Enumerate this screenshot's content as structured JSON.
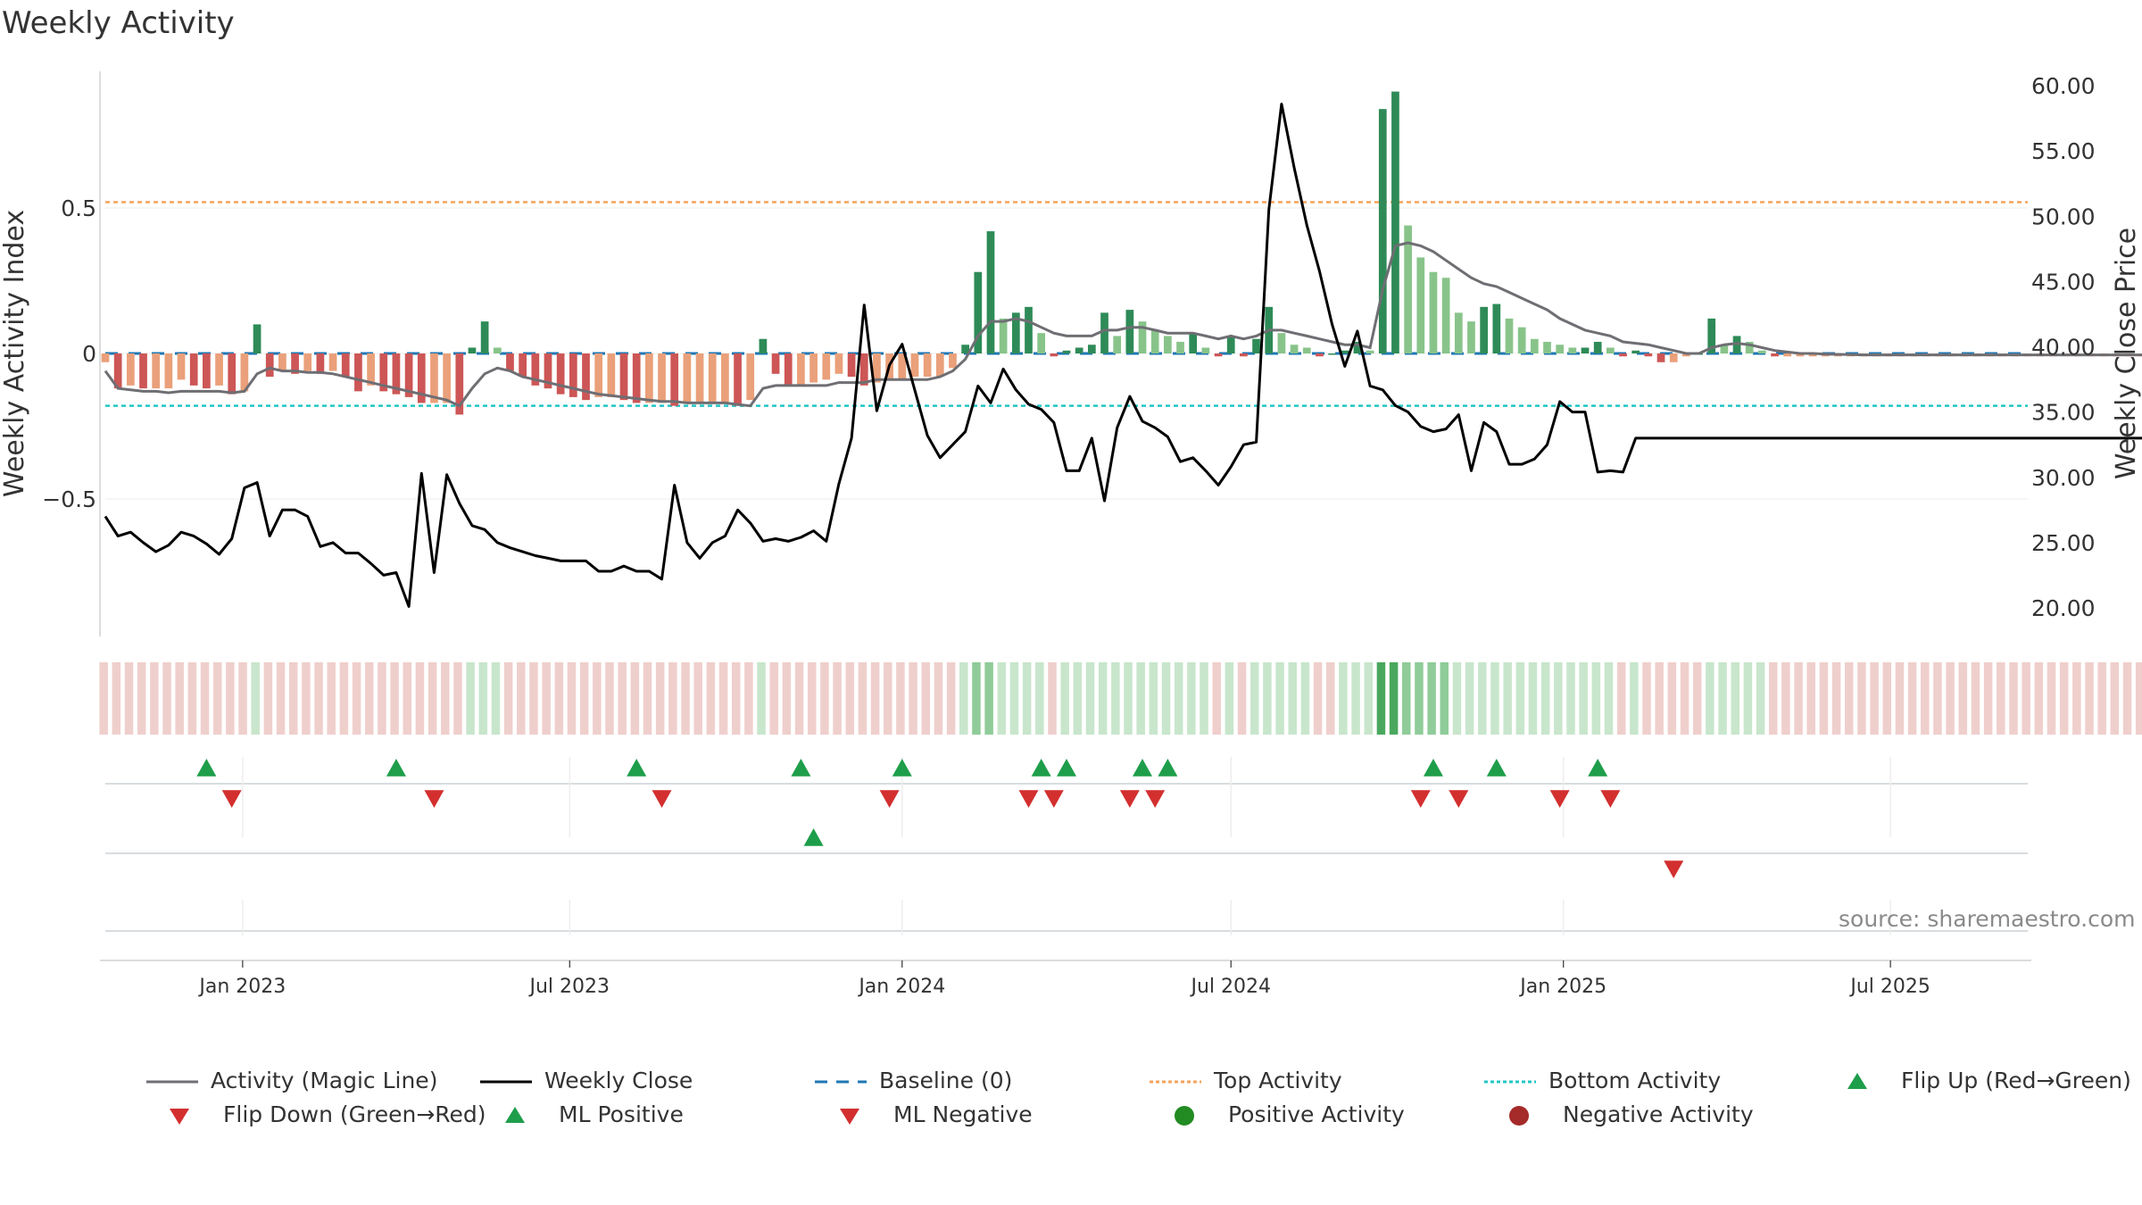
{
  "title": "Weekly Activity",
  "source": "source: sharemaestro.com",
  "colors": {
    "magic_line": "#6e6e73",
    "close": "#000000",
    "baseline": "#1f77b4",
    "top": "#f5a35a",
    "bottom": "#22c5c5",
    "up": "#1e9e4a",
    "down": "#d32f2f",
    "pos_dark": "#2e8b57",
    "pos_light": "#88c48a",
    "neg_dark": "#cd5656",
    "neg_light": "#eaa07a",
    "band_pos": "#c8e6cc",
    "band_neg": "#efcfcc",
    "band_pos_strong": "#4aa85e"
  },
  "legend": [
    {
      "key": "magic",
      "label": "Activity (Magic Line)",
      "symbol": "line-solid-gray"
    },
    {
      "key": "close",
      "label": "Weekly Close",
      "symbol": "line-solid-black"
    },
    {
      "key": "baseline",
      "label": "Baseline (0)",
      "symbol": "line-dashed-blue"
    },
    {
      "key": "top",
      "label": "Top Activity",
      "symbol": "line-dotted-orange"
    },
    {
      "key": "bottom",
      "label": "Bottom Activity",
      "symbol": "line-dotted-cyan"
    },
    {
      "key": "flipup",
      "label": "Flip Up (Red→Green)",
      "symbol": "triangle-up-green"
    },
    {
      "key": "flipdown",
      "label": "Flip Down (Green→Red)",
      "symbol": "triangle-down-red"
    },
    {
      "key": "mlpos",
      "label": "ML Positive",
      "symbol": "triangle-up-green"
    },
    {
      "key": "mlneg",
      "label": "ML Negative",
      "symbol": "triangle-down-red"
    },
    {
      "key": "posact",
      "label": "Positive Activity",
      "symbol": "circle-green"
    },
    {
      "key": "negact",
      "label": "Negative Activity",
      "symbol": "circle-red"
    }
  ],
  "chart_data": {
    "type": "bar",
    "ylabel": "Weekly Activity Index",
    "y2label": "Weekly Close Price",
    "y_ticks": [
      "0.5",
      "0",
      "−0.5"
    ],
    "y_tick_values": [
      0.5,
      0,
      -0.5
    ],
    "y2_ticks": [
      "60.00",
      "55.00",
      "50.00",
      "45.00",
      "40.00",
      "35.00",
      "30.00",
      "25.00",
      "20.00"
    ],
    "y2_tick_values": [
      60,
      55,
      50,
      45,
      40,
      35,
      30,
      25,
      20
    ],
    "x_ticks": [
      "Jan 2023",
      "Jul 2023",
      "Jan 2024",
      "Jul 2024",
      "Jan 2025",
      "Jul 2025"
    ],
    "x_tick_dates": [
      "2023-01-01",
      "2023-07-01",
      "2024-01-01",
      "2024-07-01",
      "2025-01-01",
      "2025-07-01"
    ],
    "x_range": [
      "2022-10-17",
      "2025-09-15"
    ],
    "ylim": [
      -0.97,
      0.97
    ],
    "y2lim": [
      17.5,
      61.5
    ],
    "top_activity": 0.52,
    "bottom_activity": -0.18,
    "baseline": 0,
    "grid": true,
    "series": [
      {
        "name": "Weekly Activity Index",
        "kind": "bar",
        "values": [
          -0.03,
          -0.12,
          -0.11,
          -0.12,
          -0.12,
          -0.12,
          -0.09,
          -0.11,
          -0.12,
          -0.11,
          -0.14,
          -0.13,
          0.1,
          -0.08,
          -0.06,
          -0.07,
          -0.06,
          -0.07,
          -0.06,
          -0.08,
          -0.13,
          -0.11,
          -0.13,
          -0.14,
          -0.15,
          -0.17,
          -0.17,
          -0.17,
          -0.21,
          0.02,
          0.11,
          0.02,
          -0.06,
          -0.08,
          -0.11,
          -0.12,
          -0.14,
          -0.15,
          -0.16,
          -0.15,
          -0.15,
          -0.16,
          -0.17,
          -0.17,
          -0.17,
          -0.18,
          -0.17,
          -0.17,
          -0.17,
          -0.17,
          -0.18,
          -0.16,
          0.05,
          -0.07,
          -0.11,
          -0.11,
          -0.1,
          -0.09,
          -0.07,
          -0.08,
          -0.11,
          -0.1,
          -0.09,
          -0.09,
          -0.08,
          -0.08,
          -0.08,
          -0.05,
          0.03,
          0.28,
          0.42,
          0.12,
          0.14,
          0.16,
          0.07,
          -0.01,
          0.01,
          0.02,
          0.03,
          0.14,
          0.06,
          0.15,
          0.11,
          0.08,
          0.06,
          0.04,
          0.07,
          0.02,
          -0.01,
          0.06,
          -0.01,
          0.05,
          0.16,
          0.07,
          0.03,
          0.02,
          -0.01,
          0.0,
          0.01,
          0.04,
          0.01,
          0.84,
          0.9,
          0.44,
          0.33,
          0.28,
          0.26,
          0.14,
          0.11,
          0.16,
          0.17,
          0.12,
          0.09,
          0.05,
          0.04,
          0.03,
          0.02,
          0.02,
          0.04,
          0.02,
          -0.01,
          0.01,
          -0.01,
          -0.03,
          -0.03,
          -0.01,
          0.0,
          0.12,
          0.03,
          0.06,
          0.04,
          0.01,
          -0.01,
          -0.01,
          -0.01,
          -0.01,
          -0.01,
          -0.01,
          -0.01,
          -0.01,
          -0.01,
          -0.01,
          -0.01,
          -0.01,
          -0.01,
          -0.01,
          -0.01,
          -0.01,
          -0.01,
          -0.01,
          -0.01,
          -0.01,
          -0.01,
          -0.01,
          -0.01,
          -0.01,
          -0.01,
          -0.01,
          -0.01,
          -0.01,
          -0.01,
          -0.01,
          -0.01
        ]
      },
      {
        "name": "Activity (Magic Line)",
        "kind": "line",
        "values": [
          -0.06,
          -0.12,
          -0.125,
          -0.13,
          -0.13,
          -0.135,
          -0.13,
          -0.13,
          -0.13,
          -0.13,
          -0.135,
          -0.13,
          -0.07,
          -0.05,
          -0.06,
          -0.06,
          -0.065,
          -0.065,
          -0.07,
          -0.08,
          -0.09,
          -0.1,
          -0.11,
          -0.12,
          -0.13,
          -0.14,
          -0.15,
          -0.16,
          -0.18,
          -0.12,
          -0.07,
          -0.05,
          -0.06,
          -0.08,
          -0.09,
          -0.1,
          -0.11,
          -0.12,
          -0.13,
          -0.14,
          -0.145,
          -0.15,
          -0.155,
          -0.16,
          -0.165,
          -0.165,
          -0.17,
          -0.17,
          -0.17,
          -0.17,
          -0.175,
          -0.18,
          -0.12,
          -0.11,
          -0.11,
          -0.11,
          -0.11,
          -0.11,
          -0.1,
          -0.1,
          -0.1,
          -0.09,
          -0.09,
          -0.09,
          -0.09,
          -0.09,
          -0.08,
          -0.06,
          -0.02,
          0.06,
          0.11,
          0.11,
          0.12,
          0.11,
          0.09,
          0.07,
          0.06,
          0.06,
          0.06,
          0.08,
          0.08,
          0.09,
          0.09,
          0.08,
          0.07,
          0.07,
          0.07,
          0.06,
          0.05,
          0.06,
          0.05,
          0.06,
          0.08,
          0.08,
          0.07,
          0.06,
          0.05,
          0.04,
          0.03,
          0.03,
          0.02,
          0.22,
          0.37,
          0.38,
          0.37,
          0.35,
          0.32,
          0.29,
          0.26,
          0.24,
          0.23,
          0.21,
          0.19,
          0.17,
          0.15,
          0.12,
          0.1,
          0.08,
          0.07,
          0.06,
          0.04,
          0.035,
          0.03,
          0.02,
          0.01,
          0.0,
          0.0,
          0.02,
          0.03,
          0.035,
          0.03,
          0.02,
          0.01,
          0.005,
          0.0,
          0.0,
          -0.002,
          -0.003,
          -0.004,
          -0.005,
          -0.005,
          -0.005,
          -0.005,
          -0.005,
          -0.005,
          -0.005,
          -0.005,
          -0.005,
          -0.005,
          -0.005,
          -0.005,
          -0.005,
          -0.005,
          -0.005,
          -0.005,
          -0.005,
          -0.005,
          -0.005,
          -0.005,
          -0.005,
          -0.005,
          -0.005,
          -0.005,
          -0.005
        ]
      },
      {
        "name": "Weekly Close",
        "kind": "line",
        "values": [
          27.0,
          25.5,
          25.8,
          25.0,
          24.3,
          24.8,
          25.8,
          25.5,
          24.9,
          24.1,
          25.3,
          29.2,
          29.6,
          25.5,
          27.5,
          27.5,
          27.0,
          24.7,
          25.0,
          24.2,
          24.2,
          23.4,
          22.5,
          22.7,
          20.1,
          30.3,
          22.7,
          30.2,
          28.0,
          26.3,
          26.0,
          25.0,
          24.6,
          24.3,
          24.0,
          23.8,
          23.6,
          23.6,
          23.6,
          22.8,
          22.8,
          23.2,
          22.8,
          22.8,
          22.2,
          29.4,
          25.0,
          23.8,
          25.0,
          25.5,
          27.5,
          26.5,
          25.1,
          25.3,
          25.1,
          25.4,
          25.9,
          25.1,
          29.5,
          33.0,
          43.2,
          35.1,
          38.6,
          40.2,
          36.7,
          33.2,
          31.5,
          32.5,
          33.5,
          37.0,
          35.7,
          38.3,
          36.7,
          35.6,
          35.2,
          34.2,
          30.5,
          30.5,
          33.0,
          28.2,
          33.8,
          36.2,
          34.3,
          33.8,
          33.1,
          31.2,
          31.5,
          30.5,
          29.4,
          30.8,
          32.5,
          32.7,
          50.5,
          58.6,
          53.7,
          49.3,
          45.8,
          41.7,
          38.5,
          41.2,
          37.0,
          36.7,
          35.5,
          35.0,
          33.9,
          33.5,
          33.7,
          34.8,
          30.5,
          34.2,
          33.5,
          31.0,
          31.0,
          31.4,
          32.5,
          35.8,
          35.0,
          35.0,
          30.4,
          30.5,
          30.4,
          33.0,
          33.0,
          33.0,
          33.0,
          33.0,
          33.0,
          33.0,
          33.0,
          33.0,
          33.0,
          33.0,
          33.0,
          33.0,
          33.0,
          33.0,
          33.0,
          33.0,
          33.0,
          33.0,
          33.0,
          33.0,
          33.0,
          33.0,
          33.0,
          33.0,
          33.0,
          33.0,
          33.0,
          33.0,
          33.0,
          33.0,
          33.0,
          33.0,
          33.0,
          33.0,
          33.0,
          33.0,
          33.0,
          33.0,
          33.0,
          33.0,
          33.0,
          33.0,
          33.0,
          33.0,
          33.0,
          33.0,
          33.0,
          33.0,
          33.0
        ]
      }
    ],
    "flip_up_dates": [
      "2022-12-12",
      "2023-03-27",
      "2023-08-07",
      "2023-11-06",
      "2024-01-01",
      "2024-03-18",
      "2024-04-01",
      "2024-05-13",
      "2024-05-27",
      "2024-10-21",
      "2024-11-25",
      "2025-01-20"
    ],
    "flip_down_dates": [
      "2022-12-26",
      "2023-04-17",
      "2023-08-21",
      "2023-12-25",
      "2024-03-11",
      "2024-03-25",
      "2024-05-06",
      "2024-05-20",
      "2024-10-14",
      "2024-11-04",
      "2024-12-30",
      "2025-01-27"
    ],
    "ml_positive_dates": [
      "2023-11-13"
    ],
    "ml_negative_dates": [
      "2025-03-03"
    ]
  }
}
